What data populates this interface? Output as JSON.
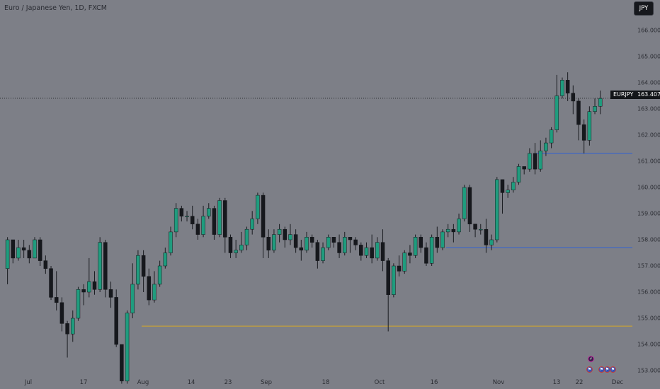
{
  "header": {
    "title": "Euro / Japanese Yen, 1D, FXCM",
    "currency_button": "JPY"
  },
  "price_axis": {
    "labels": [
      "166.000",
      "165.000",
      "164.000",
      "163.000",
      "162.000",
      "161.000",
      "160.000",
      "159.000",
      "158.000",
      "157.000",
      "156.000",
      "155.000",
      "154.000",
      "153.000"
    ]
  },
  "time_axis": {
    "labels": [
      "Jul",
      "17",
      "Aug",
      "14",
      "23",
      "Sep",
      "18",
      "Oct",
      "16",
      "Nov",
      "13",
      "22",
      "Dec"
    ]
  },
  "current_price": {
    "symbol": "EURJPY",
    "value": "163.407"
  },
  "events": {
    "icons": [
      "lightning-icon",
      "flag-icon",
      "flag-icon",
      "flag-icon",
      "flag-icon"
    ]
  },
  "colors": {
    "up": "#1f9c7e",
    "down": "#16181d",
    "support_line": "#2f62d4",
    "level_line": "#d4a62a"
  },
  "chart_data": {
    "type": "candlestick",
    "title": "Euro / Japanese Yen, 1D, FXCM",
    "symbol": "EURJPY",
    "interval": "1D",
    "ylim": [
      152.6,
      166.4
    ],
    "y_ticks": [
      153,
      154,
      155,
      156,
      157,
      158,
      159,
      160,
      161,
      162,
      163,
      164,
      165,
      166
    ],
    "last_price": 163.407,
    "horizontal_lines": [
      {
        "value": 161.3,
        "color": "blue"
      },
      {
        "value": 157.7,
        "color": "blue"
      },
      {
        "value": 154.7,
        "color": "orange"
      }
    ],
    "candles": [
      [
        156.9,
        158.0,
        156.3,
        158.1
      ],
      [
        158.0,
        157.3,
        157.1,
        158.0
      ],
      [
        157.3,
        157.7,
        157.2,
        158.0
      ],
      [
        157.7,
        157.6,
        157.3,
        158.0
      ],
      [
        157.6,
        157.3,
        157.1,
        157.8
      ],
      [
        157.3,
        158.0,
        157.3,
        158.1
      ],
      [
        158.0,
        157.2,
        157.0,
        158.1
      ],
      [
        157.2,
        156.9,
        156.7,
        157.4
      ],
      [
        156.9,
        155.8,
        155.7,
        157.0
      ],
      [
        155.8,
        155.6,
        155.3,
        156.8
      ],
      [
        155.6,
        154.8,
        154.5,
        155.8
      ],
      [
        154.8,
        154.4,
        153.5,
        154.9
      ],
      [
        154.4,
        155.0,
        154.1,
        155.3
      ],
      [
        155.0,
        156.1,
        154.9,
        156.2
      ],
      [
        156.1,
        156.0,
        155.5,
        156.3
      ],
      [
        156.0,
        156.4,
        155.8,
        157.3
      ],
      [
        156.4,
        156.1,
        155.9,
        156.8
      ],
      [
        156.1,
        157.9,
        156.0,
        158.1
      ],
      [
        157.9,
        156.1,
        155.8,
        158.0
      ],
      [
        156.1,
        155.8,
        155.4,
        156.4
      ],
      [
        155.8,
        154.0,
        153.9,
        156.1
      ],
      [
        154.0,
        152.6,
        152.5,
        154.0
      ],
      [
        152.6,
        155.2,
        152.5,
        155.3
      ],
      [
        155.2,
        156.3,
        155.0,
        157.1
      ],
      [
        156.3,
        157.4,
        156.1,
        157.6
      ],
      [
        157.4,
        156.6,
        156.0,
        157.6
      ],
      [
        156.6,
        155.7,
        155.5,
        156.9
      ],
      [
        155.7,
        156.3,
        155.6,
        156.8
      ],
      [
        156.3,
        157.0,
        156.2,
        157.2
      ],
      [
        157.0,
        157.5,
        156.9,
        157.7
      ],
      [
        157.5,
        158.3,
        157.4,
        158.5
      ],
      [
        158.3,
        159.2,
        158.1,
        159.4
      ],
      [
        159.2,
        158.9,
        158.7,
        159.3
      ],
      [
        158.9,
        158.9,
        158.7,
        159.1
      ],
      [
        158.9,
        158.6,
        158.4,
        159.3
      ],
      [
        158.6,
        158.2,
        158.0,
        158.8
      ],
      [
        158.2,
        158.9,
        158.1,
        159.3
      ],
      [
        158.9,
        159.2,
        158.8,
        159.4
      ],
      [
        159.2,
        158.2,
        158.0,
        159.3
      ],
      [
        158.2,
        159.5,
        158.1,
        159.6
      ],
      [
        159.5,
        158.1,
        157.5,
        159.6
      ],
      [
        158.1,
        157.5,
        157.3,
        158.2
      ],
      [
        157.5,
        157.6,
        157.3,
        158.0
      ],
      [
        157.6,
        157.8,
        157.5,
        158.3
      ],
      [
        157.8,
        158.4,
        157.6,
        158.5
      ],
      [
        158.4,
        158.8,
        158.2,
        159.1
      ],
      [
        158.8,
        159.7,
        158.6,
        159.8
      ],
      [
        159.7,
        158.1,
        157.3,
        159.8
      ],
      [
        158.1,
        157.6,
        157.3,
        158.4
      ],
      [
        157.6,
        158.2,
        157.5,
        158.4
      ],
      [
        158.2,
        158.4,
        157.9,
        158.6
      ],
      [
        158.4,
        158.0,
        157.7,
        158.5
      ],
      [
        158.0,
        158.2,
        157.8,
        158.6
      ],
      [
        158.2,
        157.7,
        157.5,
        158.4
      ],
      [
        157.7,
        157.6,
        157.2,
        158.0
      ],
      [
        157.6,
        158.1,
        157.5,
        158.3
      ],
      [
        158.1,
        157.9,
        157.7,
        158.2
      ],
      [
        157.9,
        157.2,
        156.9,
        158.0
      ],
      [
        157.2,
        157.7,
        157.1,
        157.9
      ],
      [
        157.7,
        158.1,
        157.6,
        158.2
      ],
      [
        158.1,
        157.9,
        157.7,
        158.1
      ],
      [
        157.9,
        157.5,
        157.3,
        158.2
      ],
      [
        157.5,
        158.1,
        157.4,
        158.3
      ],
      [
        158.1,
        158.0,
        157.5,
        158.1
      ],
      [
        158.0,
        157.8,
        157.6,
        158.1
      ],
      [
        157.8,
        157.4,
        157.2,
        157.9
      ],
      [
        157.4,
        157.7,
        157.3,
        157.9
      ],
      [
        157.7,
        157.3,
        157.1,
        158.2
      ],
      [
        157.3,
        157.9,
        157.2,
        158.1
      ],
      [
        157.9,
        157.2,
        156.8,
        158.4
      ],
      [
        157.2,
        155.9,
        154.5,
        157.3
      ],
      [
        155.9,
        157.0,
        155.8,
        157.1
      ],
      [
        157.0,
        156.8,
        156.6,
        157.4
      ],
      [
        156.8,
        157.5,
        156.7,
        157.6
      ],
      [
        157.5,
        157.4,
        157.1,
        157.8
      ],
      [
        157.4,
        158.1,
        157.3,
        158.2
      ],
      [
        158.1,
        157.7,
        157.5,
        158.2
      ],
      [
        157.7,
        157.1,
        157.0,
        157.9
      ],
      [
        157.1,
        158.1,
        157.0,
        158.2
      ],
      [
        158.1,
        157.7,
        157.5,
        158.5
      ],
      [
        157.7,
        158.3,
        157.6,
        158.4
      ],
      [
        158.3,
        158.4,
        158.1,
        158.6
      ],
      [
        158.4,
        158.3,
        157.9,
        158.6
      ],
      [
        158.3,
        158.8,
        158.2,
        159.0
      ],
      [
        158.8,
        160.0,
        158.7,
        160.1
      ],
      [
        160.0,
        158.6,
        158.3,
        160.1
      ],
      [
        158.6,
        158.4,
        158.1,
        158.6
      ],
      [
        158.4,
        158.4,
        158.2,
        158.6
      ],
      [
        158.4,
        157.8,
        157.5,
        158.8
      ],
      [
        157.8,
        158.0,
        157.6,
        158.2
      ],
      [
        158.0,
        160.3,
        157.9,
        160.4
      ],
      [
        160.3,
        159.8,
        159.0,
        160.3
      ],
      [
        159.8,
        159.9,
        159.6,
        160.1
      ],
      [
        159.9,
        160.2,
        159.8,
        160.4
      ],
      [
        160.2,
        160.8,
        160.1,
        160.9
      ],
      [
        160.8,
        160.7,
        160.5,
        160.8
      ],
      [
        160.7,
        161.3,
        160.6,
        161.5
      ],
      [
        161.3,
        160.7,
        160.5,
        161.7
      ],
      [
        160.7,
        161.4,
        160.6,
        161.8
      ],
      [
        161.4,
        161.7,
        161.2,
        161.9
      ],
      [
        161.7,
        162.2,
        161.5,
        162.3
      ],
      [
        162.2,
        163.5,
        162.1,
        164.3
      ],
      [
        163.5,
        164.1,
        163.4,
        164.2
      ],
      [
        164.1,
        163.6,
        163.3,
        164.4
      ],
      [
        163.6,
        163.3,
        162.8,
        163.9
      ],
      [
        163.3,
        162.4,
        161.8,
        163.4
      ],
      [
        162.4,
        161.8,
        161.3,
        162.6
      ],
      [
        161.8,
        162.9,
        161.6,
        163.1
      ],
      [
        162.9,
        163.1,
        162.8,
        163.4
      ],
      [
        163.1,
        163.4,
        162.8,
        163.7
      ]
    ]
  }
}
